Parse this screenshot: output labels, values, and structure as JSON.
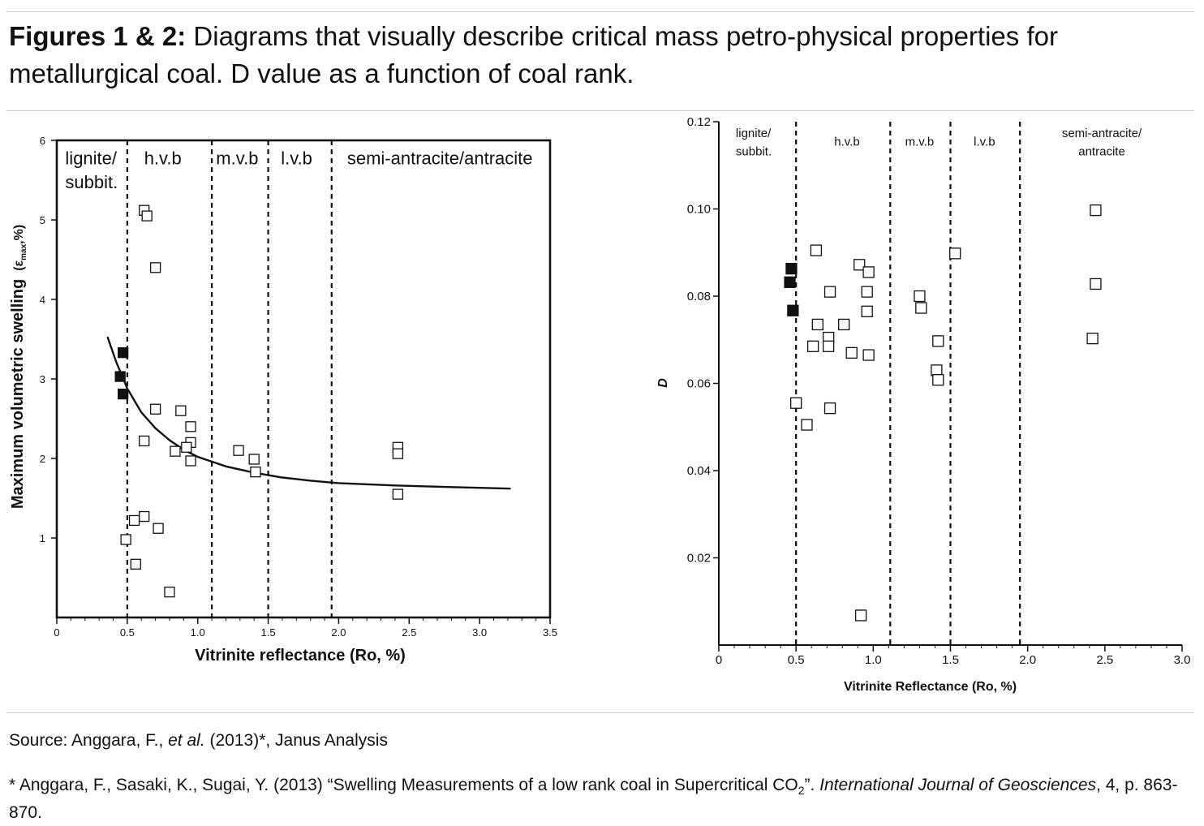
{
  "caption": {
    "bold": "Figures 1 & 2:",
    "text": " Diagrams that visually describe critical mass petro-physical properties for metallurgical coal. D value as a function of coal rank."
  },
  "source": {
    "prefix": "Source: Anggara, F., ",
    "etal": "et al.",
    "suffix": " (2013)*, Janus Analysis"
  },
  "reference": {
    "text1": "* Anggara, F., Sasaki, K., Sugai, Y. (2013) “Swelling Measurements of a low rank coal in Supercritical CO",
    "sub": "2",
    "text2": "”.  ",
    "journal": "International Journal of Geosciences",
    "text3": ", 4, p. 863-870."
  },
  "colors": {
    "rule": "#b9ccd3",
    "ink": "#111111"
  },
  "chart_data": [
    {
      "type": "scatter",
      "xlabel": "Vitrinite reflectance (Ro, %)",
      "ylabel_main": "Maximum volumetric swelling",
      "ylabel_symbol": "(ε",
      "ylabel_sub": "max",
      "ylabel_end": ",%)",
      "xlim": [
        0,
        3.5
      ],
      "ylim": [
        0,
        6
      ],
      "xticks": [
        0,
        0.5,
        1.0,
        1.5,
        2.0,
        2.5,
        3.0,
        3.5
      ],
      "xtick_labels": [
        "0",
        "0.5",
        "1.0",
        "1.5",
        "2.0",
        "2.5",
        "3.0",
        "3.5"
      ],
      "yticks": [
        1,
        2,
        3,
        4,
        5,
        6
      ],
      "ytick_labels": [
        "1",
        "2",
        "3",
        "4",
        "5",
        "6"
      ],
      "boundaries": [
        0.5,
        1.1,
        1.5,
        1.95
      ],
      "regions": [
        {
          "label": "lignite/",
          "x": 0.06,
          "y": 5.7
        },
        {
          "label": "subbit.",
          "x": 0.06,
          "y": 5.4
        },
        {
          "label": "h.v.b",
          "x": 0.62,
          "y": 5.7
        },
        {
          "label": "m.v.b",
          "x": 1.13,
          "y": 5.7
        },
        {
          "label": "l.v.b",
          "x": 1.59,
          "y": 5.7
        },
        {
          "label": "semi-antracite/antracite",
          "x": 2.06,
          "y": 5.7
        }
      ],
      "series": [
        {
          "marker": "open-square",
          "points": [
            [
              0.62,
              5.12
            ],
            [
              0.64,
              5.05
            ],
            [
              0.7,
              4.4
            ],
            [
              0.7,
              2.62
            ],
            [
              0.88,
              2.6
            ],
            [
              0.95,
              2.4
            ],
            [
              0.62,
              2.22
            ],
            [
              0.95,
              2.2
            ],
            [
              0.92,
              2.14
            ],
            [
              0.84,
              2.09
            ],
            [
              0.95,
              1.97
            ],
            [
              1.29,
              2.1
            ],
            [
              1.4,
              1.99
            ],
            [
              1.41,
              1.83
            ],
            [
              0.55,
              1.22
            ],
            [
              0.62,
              1.27
            ],
            [
              0.72,
              1.12
            ],
            [
              0.49,
              0.98
            ],
            [
              0.56,
              0.67
            ],
            [
              0.8,
              0.32
            ],
            [
              2.42,
              2.14
            ],
            [
              2.42,
              2.06
            ],
            [
              2.42,
              1.55
            ]
          ]
        },
        {
          "marker": "filled-square",
          "points": [
            [
              0.47,
              3.33
            ],
            [
              0.45,
              3.03
            ],
            [
              0.47,
              2.81
            ]
          ]
        }
      ],
      "fit_curve": [
        [
          0.36,
          3.53
        ],
        [
          0.42,
          3.22
        ],
        [
          0.5,
          2.88
        ],
        [
          0.6,
          2.58
        ],
        [
          0.7,
          2.38
        ],
        [
          0.8,
          2.23
        ],
        [
          0.9,
          2.11
        ],
        [
          1.0,
          2.02
        ],
        [
          1.2,
          1.9
        ],
        [
          1.4,
          1.82
        ],
        [
          1.6,
          1.76
        ],
        [
          1.8,
          1.72
        ],
        [
          2.0,
          1.69
        ],
        [
          2.4,
          1.66
        ],
        [
          2.8,
          1.64
        ],
        [
          3.22,
          1.62
        ]
      ]
    },
    {
      "type": "scatter",
      "xlabel": "Vitrinite Reflectance (Ro, %)",
      "ylabel": "D",
      "xlim": [
        0,
        3.0
      ],
      "ylim": [
        0,
        0.12
      ],
      "xticks": [
        0,
        0.5,
        1.0,
        1.5,
        2.0,
        2.5,
        3.0
      ],
      "xtick_labels": [
        "0",
        "0.5",
        "1.0",
        "1.5",
        "2.0",
        "2.5",
        "3.0"
      ],
      "yticks": [
        0.02,
        0.04,
        0.06,
        0.08,
        0.1,
        0.12
      ],
      "ytick_labels": [
        "0.02",
        "0.04",
        "0.06",
        "0.08",
        "0.10",
        "0.12"
      ],
      "boundaries": [
        0.5,
        1.11,
        1.5,
        1.95
      ],
      "regions": [
        {
          "label": "lignite/",
          "x": 0.11,
          "y": 0.1165,
          "anchor": "start"
        },
        {
          "label": "subbit.",
          "x": 0.11,
          "y": 0.1123,
          "anchor": "start"
        },
        {
          "label": "h.v.b",
          "x": 0.83,
          "y": 0.1145,
          "anchor": "middle"
        },
        {
          "label": "m.v.b",
          "x": 1.3,
          "y": 0.1145,
          "anchor": "middle"
        },
        {
          "label": "l.v.b",
          "x": 1.72,
          "y": 0.1145,
          "anchor": "middle"
        },
        {
          "label": "semi-antracite/",
          "x": 2.48,
          "y": 0.1165,
          "anchor": "middle"
        },
        {
          "label": "antracite",
          "x": 2.48,
          "y": 0.1123,
          "anchor": "middle"
        }
      ],
      "series": [
        {
          "marker": "open-square",
          "points": [
            [
              0.63,
              0.0905
            ],
            [
              0.72,
              0.081
            ],
            [
              0.91,
              0.0872
            ],
            [
              0.97,
              0.0855
            ],
            [
              0.96,
              0.081
            ],
            [
              0.96,
              0.0765
            ],
            [
              0.64,
              0.0735
            ],
            [
              0.81,
              0.0735
            ],
            [
              0.71,
              0.0705
            ],
            [
              0.61,
              0.0685
            ],
            [
              0.71,
              0.0685
            ],
            [
              0.86,
              0.067
            ],
            [
              0.97,
              0.0665
            ],
            [
              0.5,
              0.0555
            ],
            [
              0.72,
              0.0543
            ],
            [
              0.57,
              0.0505
            ],
            [
              0.92,
              0.0068
            ],
            [
              1.3,
              0.08
            ],
            [
              1.31,
              0.0773
            ],
            [
              1.42,
              0.0697
            ],
            [
              1.41,
              0.063
            ],
            [
              1.42,
              0.0608
            ],
            [
              1.53,
              0.0898
            ],
            [
              2.44,
              0.0997
            ],
            [
              2.44,
              0.0828
            ],
            [
              2.42,
              0.0703
            ]
          ]
        },
        {
          "marker": "filled-square",
          "points": [
            [
              0.47,
              0.0863
            ],
            [
              0.46,
              0.0832
            ],
            [
              0.48,
              0.0767
            ]
          ]
        }
      ]
    }
  ]
}
